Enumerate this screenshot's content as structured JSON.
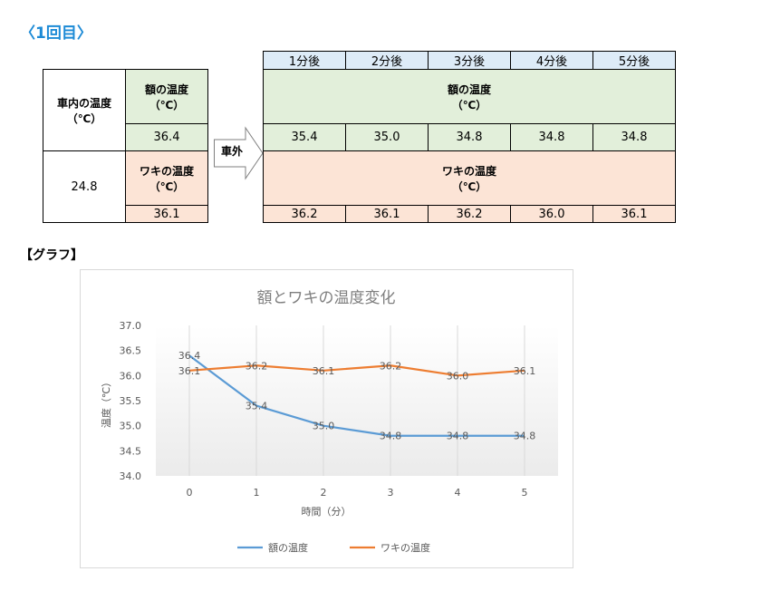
{
  "heading": "〈1回目〉",
  "graph_heading": "【グラフ】",
  "left_table": {
    "row_label": "車内の温度\n（℃）",
    "inside_value": "24.8",
    "forehead_label": "額の温度\n（℃）",
    "forehead_value": "36.4",
    "armpit_label": "ワキの温度\n（℃）",
    "armpit_value": "36.1"
  },
  "arrow_label": "車外",
  "right_table": {
    "times": [
      "1分後",
      "2分後",
      "3分後",
      "4分後",
      "5分後"
    ],
    "forehead_label": "額の温度\n（℃）",
    "forehead_values": [
      "35.4",
      "35.0",
      "34.8",
      "34.8",
      "34.8"
    ],
    "armpit_label": "ワキの温度\n（℃）",
    "armpit_values": [
      "36.2",
      "36.1",
      "36.2",
      "36.0",
      "36.1"
    ]
  },
  "colors": {
    "heading": "#1c8ad6",
    "green_cell": "#e2efda",
    "pink_cell": "#fce4d6",
    "blue_cell": "#ddebf7",
    "series_forehead": "#5b9bd5",
    "series_armpit": "#ed7d31"
  },
  "chart_data": {
    "type": "line",
    "title": "額とワキの温度変化",
    "xlabel": "時間（分）",
    "ylabel": "温度（℃）",
    "x": [
      0,
      1,
      2,
      3,
      4,
      5
    ],
    "ylim": [
      34.0,
      37.0
    ],
    "yticks": [
      "34.0",
      "34.5",
      "35.0",
      "35.5",
      "36.0",
      "36.5",
      "37.0"
    ],
    "grid": "vertical",
    "legend_position": "bottom",
    "series": [
      {
        "name": "額の温度",
        "color": "#5b9bd5",
        "values": [
          36.4,
          35.4,
          35.0,
          34.8,
          34.8,
          34.8
        ],
        "labels": [
          "36.4",
          "35.4",
          "35.0",
          "34.8",
          "34.8",
          "34.8"
        ]
      },
      {
        "name": "ワキの温度",
        "color": "#ed7d31",
        "values": [
          36.1,
          36.2,
          36.1,
          36.2,
          36.0,
          36.1
        ],
        "labels": [
          "36.1",
          "36.2",
          "36.1",
          "36.2",
          "36.0",
          "36.1"
        ]
      }
    ]
  }
}
